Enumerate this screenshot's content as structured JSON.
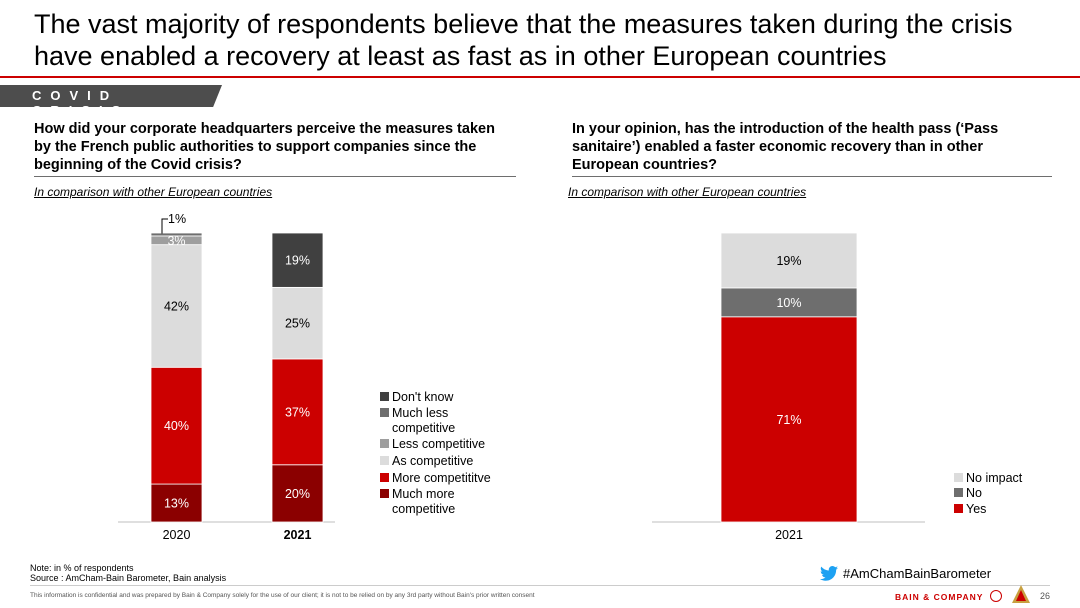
{
  "title": "The vast majority of respondents believe that the measures taken during the crisis have enabled a recovery at least as fast as in other European countries",
  "section_tag": "COVID CRISIS",
  "left_question": "How did your corporate headquarters perceive the measures taken by the French public authorities to support companies since the beginning of the Covid crisis?",
  "right_question": "In your opinion, has the introduction of the health pass (‘Pass sanitaire’) enabled a faster economic recovery than in other European countries?",
  "left_subtitle": "In comparison with other European countries",
  "right_subtitle": "In comparison with other European countries",
  "colors": {
    "dont_know": "#404040",
    "much_less": "#6e6e6e",
    "less": "#9e9e9e",
    "as": "#dcdcdc",
    "more": "#cc0000",
    "much_more": "#8b0000",
    "no_impact": "#dcdcdc",
    "no": "#6e6e6e",
    "yes": "#cc0000",
    "accent": "#cc0000"
  },
  "chart_data": [
    {
      "type": "stacked-bar",
      "unit": "% of respondents",
      "categories": [
        "2020",
        "2021"
      ],
      "bold_categories": [
        "2021"
      ],
      "series": [
        {
          "name": "Much more competitive",
          "key": "much_more",
          "values": [
            13,
            20
          ],
          "labels": [
            "13%",
            "20%"
          ],
          "label_color": "#ffffff"
        },
        {
          "name": "More competititve",
          "key": "more",
          "values": [
            40,
            37
          ],
          "labels": [
            "40%",
            "37%"
          ],
          "label_color": "#ffffff"
        },
        {
          "name": "As competitive",
          "key": "as",
          "values": [
            42,
            25
          ],
          "labels": [
            "42%",
            "25%"
          ],
          "label_color": "#000000"
        },
        {
          "name": "Less competitive",
          "key": "less",
          "values": [
            3,
            0
          ],
          "labels": [
            "3%",
            ""
          ],
          "label_color": "#ffffff"
        },
        {
          "name": "Much less competitive",
          "key": "much_less",
          "values": [
            1,
            0
          ],
          "labels": [
            "",
            ""
          ],
          "label_color": "#ffffff"
        },
        {
          "name": "Don't know",
          "key": "dont_know",
          "values": [
            0,
            19
          ],
          "labels": [
            "",
            "19%"
          ],
          "label_color": "#ffffff"
        }
      ],
      "callout": "1%",
      "legend": [
        "Don't know",
        "Much less competitive",
        "Less competitive",
        "As competitive",
        "More competititve",
        "Much more competitive"
      ],
      "legend_lines": [
        [
          "Don't know"
        ],
        [
          "Much less",
          "competitive"
        ],
        [
          "Less competitive"
        ],
        [
          "As competitive"
        ],
        [
          "More competititve"
        ],
        [
          "Much more",
          "competitive"
        ]
      ],
      "legend_keys": [
        "dont_know",
        "much_less",
        "less",
        "as",
        "more",
        "much_more"
      ]
    },
    {
      "type": "stacked-bar",
      "unit": "% of respondents",
      "categories": [
        "2021"
      ],
      "bold_categories": [],
      "series": [
        {
          "name": "Yes",
          "key": "yes",
          "values": [
            71
          ],
          "labels": [
            "71%"
          ],
          "label_color": "#ffffff"
        },
        {
          "name": "No",
          "key": "no",
          "values": [
            10
          ],
          "labels": [
            "10%"
          ],
          "label_color": "#ffffff"
        },
        {
          "name": "No impact",
          "key": "no_impact",
          "values": [
            19
          ],
          "labels": [
            "19%"
          ],
          "label_color": "#000000"
        }
      ],
      "legend": [
        "No impact",
        "No",
        "Yes"
      ],
      "legend_lines": [
        [
          "No impact"
        ],
        [
          "No"
        ],
        [
          "Yes"
        ]
      ],
      "legend_keys": [
        "no_impact",
        "no",
        "yes"
      ]
    }
  ],
  "footnotes": {
    "note": "Note: in % of respondents",
    "source": "Source : AmCham-Bain Barometer, Bain analysis",
    "confidential": "This information is confidential and was prepared by Bain & Company solely for the use of our client; it is not to be relied on by any 3rd party without Bain's prior written consent"
  },
  "hashtag": "#AmChamBainBarometer",
  "brand": "BAIN & COMPANY",
  "page_number": "26"
}
